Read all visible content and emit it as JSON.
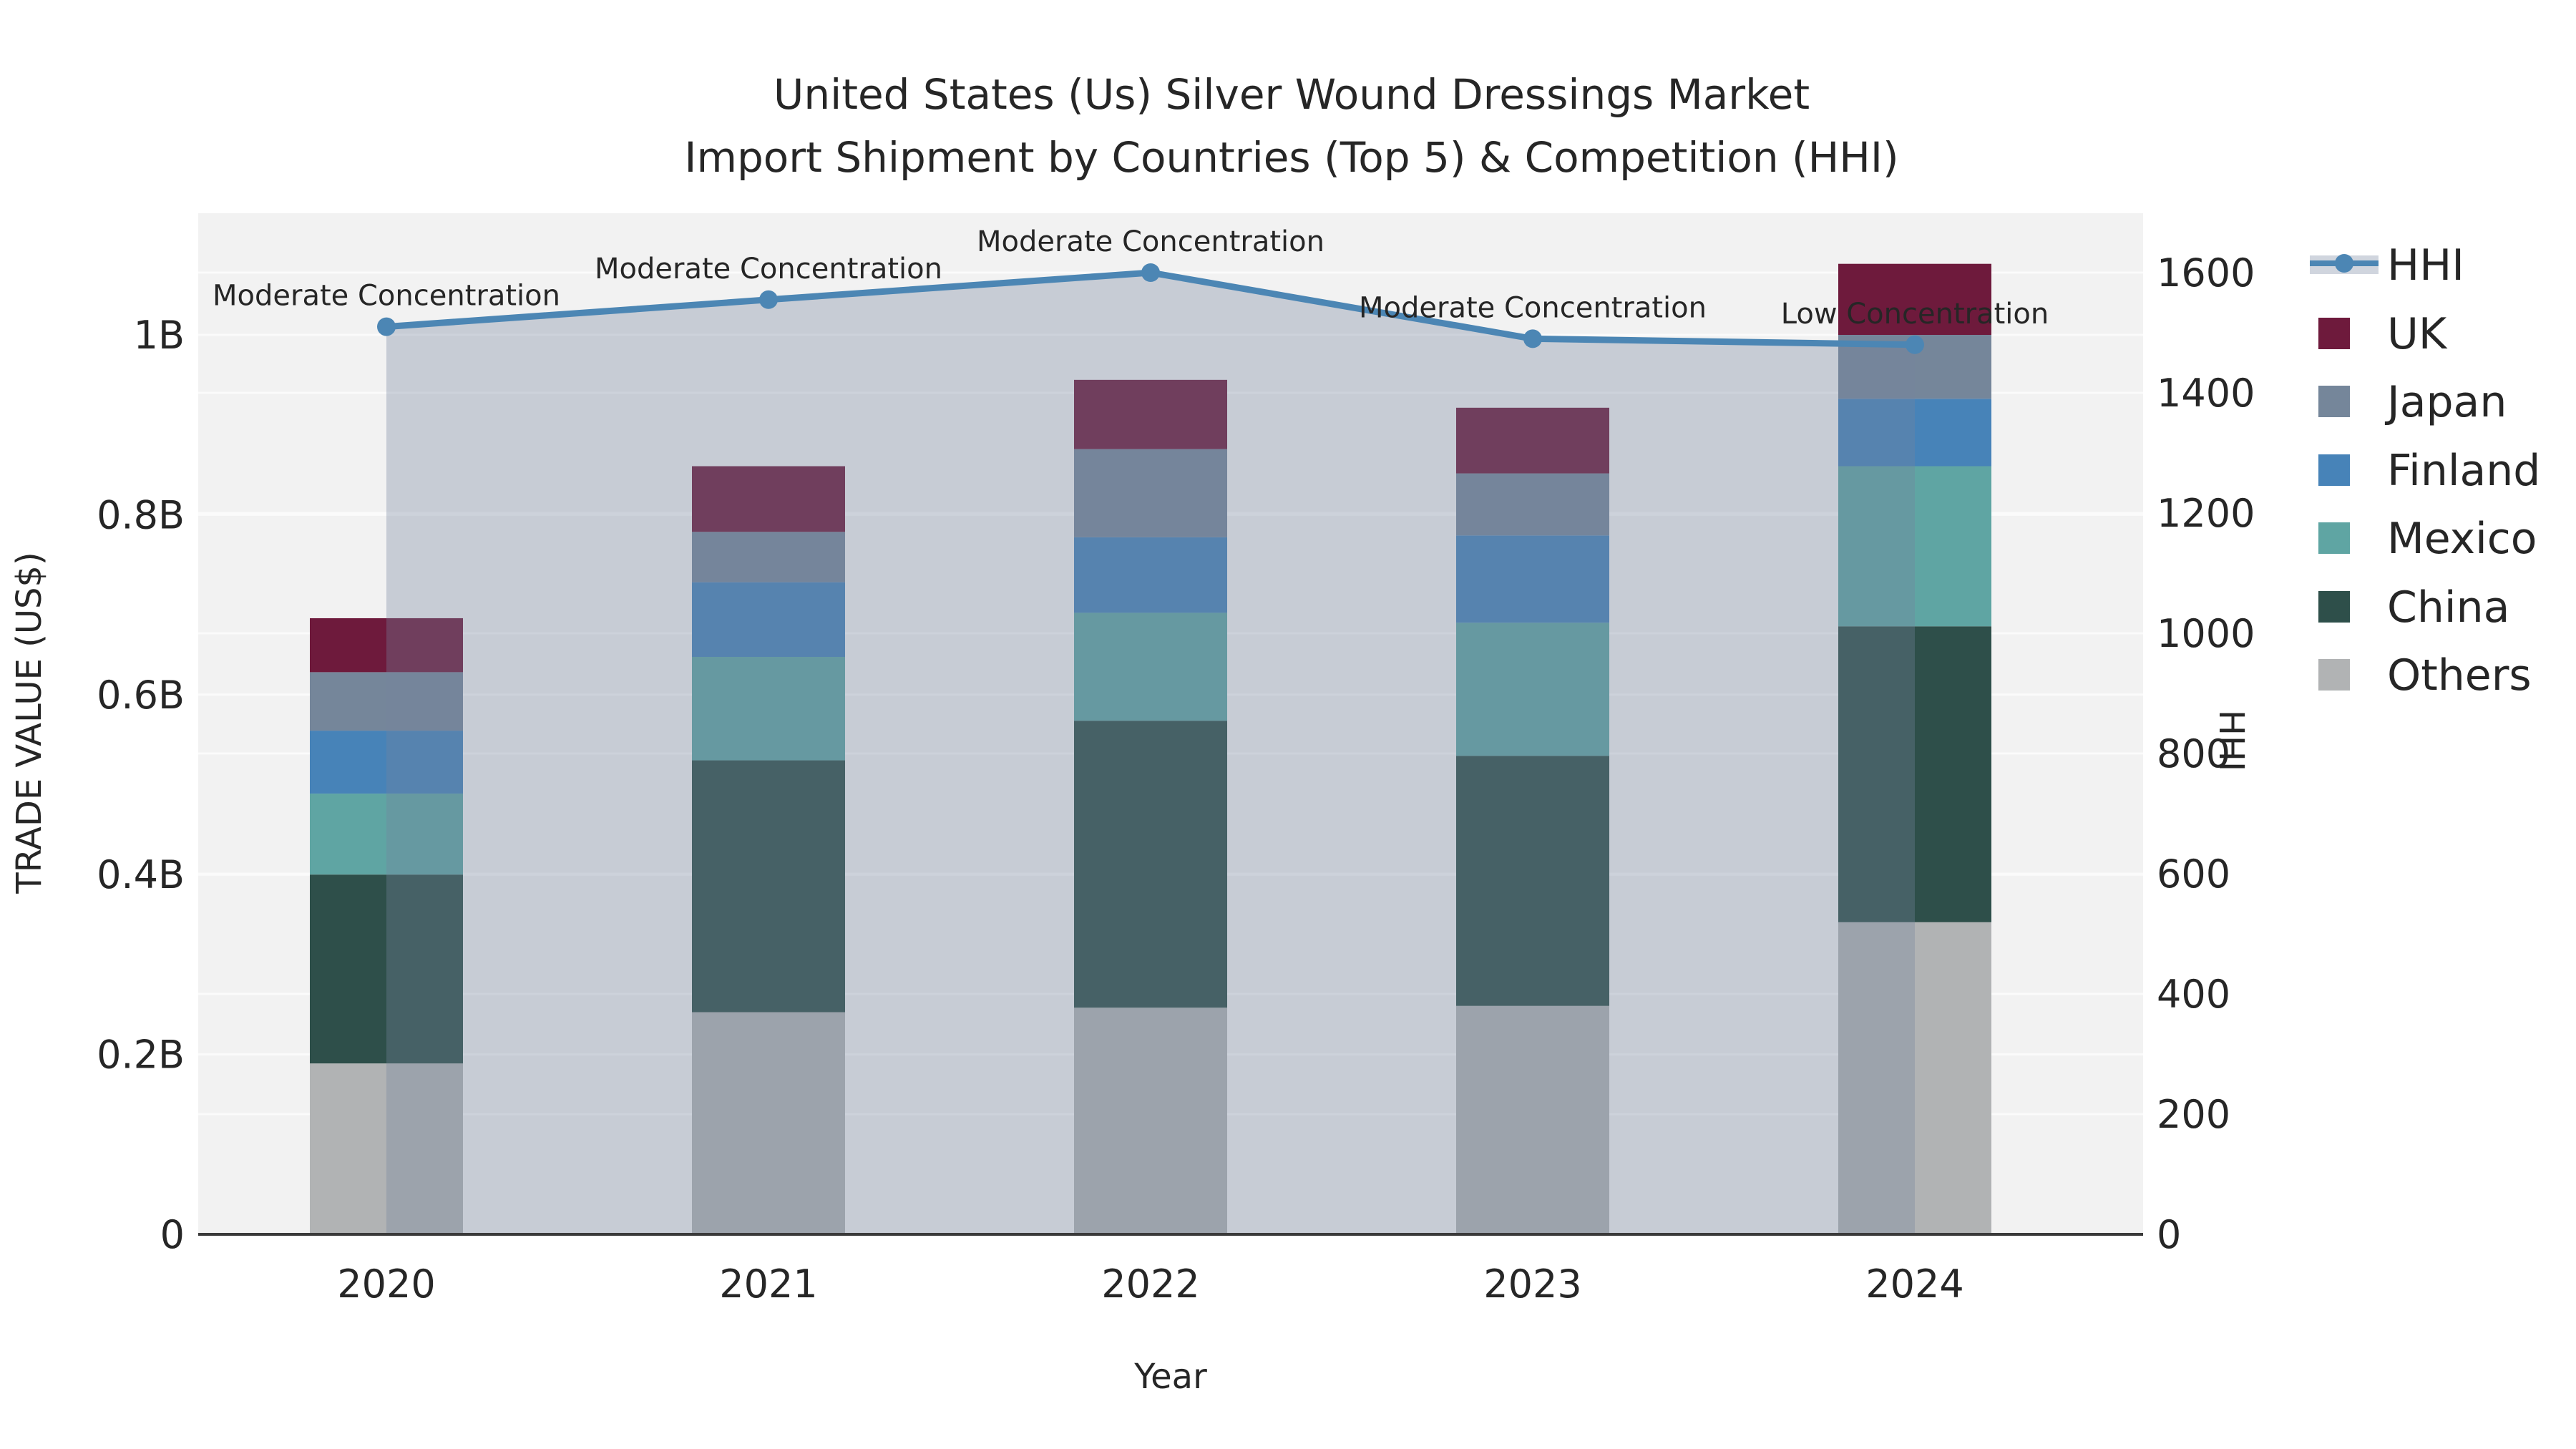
{
  "title": {
    "line1": "United States (Us) Silver Wound Dressings Market",
    "line2": "Import Shipment by Countries (Top 5) & Competition (HHI)"
  },
  "axes": {
    "x": {
      "title": "Year",
      "categories": [
        "2020",
        "2021",
        "2022",
        "2023",
        "2024"
      ]
    },
    "y_left": {
      "title": "TRADE VALUE (US$)",
      "unit": "billion US$",
      "tick_labels": [
        "0",
        "0.2B",
        "0.4B",
        "0.6B",
        "0.8B",
        "1B"
      ],
      "tick_values": [
        0,
        0.2,
        0.4,
        0.6,
        0.8,
        1.0
      ]
    },
    "y_right": {
      "title": "HHI",
      "tick_labels": [
        "0",
        "200",
        "400",
        "600",
        "800",
        "1000",
        "1200",
        "1400",
        "1600"
      ],
      "tick_values": [
        0,
        200,
        400,
        600,
        800,
        1000,
        1200,
        1400,
        1600
      ]
    }
  },
  "legend": {
    "position": "right-top",
    "items": [
      {
        "label": "HHI",
        "type": "line",
        "color": "#4c86b4"
      },
      {
        "label": "UK",
        "type": "square",
        "color": "#6e1a3c"
      },
      {
        "label": "Japan",
        "type": "square",
        "color": "#75869a"
      },
      {
        "label": "Finland",
        "type": "square",
        "color": "#4783b8"
      },
      {
        "label": "Mexico",
        "type": "square",
        "color": "#5fa5a3"
      },
      {
        "label": "China",
        "type": "square",
        "color": "#2e4f4a"
      },
      {
        "label": "Others",
        "type": "square",
        "color": "#b1b3b4"
      }
    ]
  },
  "chart_data": {
    "type": "combo: stacked-bar + line",
    "categories": [
      "2020",
      "2021",
      "2022",
      "2023",
      "2024"
    ],
    "bar_unit": "billion US$ (trade value, left axis)",
    "series": [
      {
        "name": "Others",
        "color": "#b1b3b4",
        "values": [
          0.19,
          0.247,
          0.252,
          0.254,
          0.347
        ]
      },
      {
        "name": "China",
        "color": "#2e4f4a",
        "values": [
          0.21,
          0.28,
          0.319,
          0.278,
          0.329
        ]
      },
      {
        "name": "Mexico",
        "color": "#5fa5a3",
        "values": [
          0.09,
          0.115,
          0.12,
          0.148,
          0.178
        ]
      },
      {
        "name": "Finland",
        "color": "#4783b8",
        "values": [
          0.07,
          0.083,
          0.084,
          0.097,
          0.075
        ]
      },
      {
        "name": "Japan",
        "color": "#75869a",
        "values": [
          0.065,
          0.056,
          0.098,
          0.069,
          0.071
        ]
      },
      {
        "name": "UK",
        "color": "#6e1a3c",
        "values": [
          0.06,
          0.073,
          0.077,
          0.073,
          0.079
        ]
      }
    ],
    "line_series": {
      "name": "HHI",
      "axis": "right",
      "color": "#4c86b4",
      "area_fill": "#74849e",
      "area_alpha": 0.34,
      "values": [
        1510,
        1555,
        1600,
        1490,
        1480
      ]
    },
    "annotations": [
      "Moderate Concentration",
      "Moderate Concentration",
      "Moderate Concentration",
      "Moderate Concentration",
      "Low Concentration"
    ],
    "ylim_left": [
      0,
      1.135
    ],
    "ylim_right": [
      0,
      1700
    ],
    "grid": true,
    "legend_position": "right of plot, top"
  },
  "colors": {
    "page_bg": "#ffffff",
    "plot_bg": "#f2f2f2",
    "gridline": "#fbfbfb",
    "axis_line": "#3a3a3a",
    "text": "#262626"
  }
}
